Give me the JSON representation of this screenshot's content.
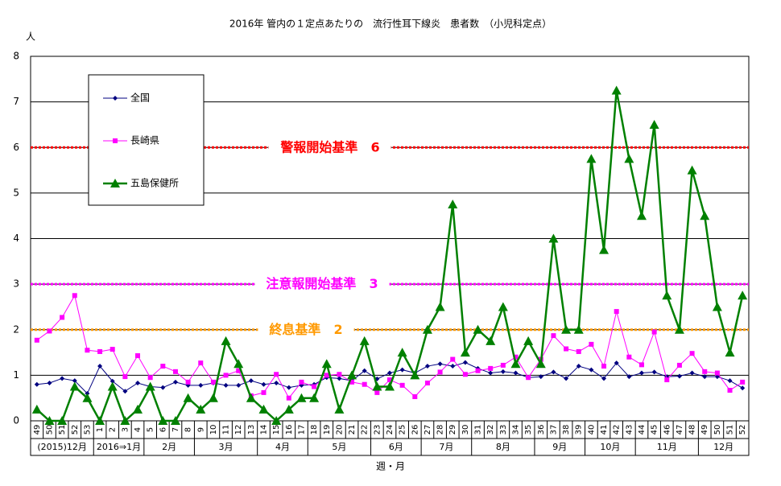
{
  "chart_data": {
    "type": "line",
    "title": "2016年 管内の１定点あたりの　流行性耳下線炎　患者数　（小児科定点）",
    "y_unit": "人",
    "x_label": "週・月",
    "categories": [
      "49",
      "50",
      "51",
      "52",
      "53",
      "1",
      "2",
      "3",
      "4",
      "5",
      "6",
      "7",
      "8",
      "9",
      "10",
      "11",
      "12",
      "13",
      "14",
      "15",
      "16",
      "17",
      "18",
      "19",
      "20",
      "21",
      "22",
      "23",
      "24",
      "25",
      "26",
      "27",
      "28",
      "29",
      "30",
      "31",
      "32",
      "33",
      "34",
      "35",
      "36",
      "37",
      "38",
      "39",
      "40",
      "41",
      "42",
      "43",
      "44",
      "45",
      "46",
      "47",
      "48",
      "49",
      "50",
      "51",
      "52"
    ],
    "x_group_labels": [
      "(2015)12月",
      null,
      null,
      null,
      null,
      "2016⇒1月",
      null,
      null,
      null,
      "2月",
      null,
      null,
      null,
      "3月",
      null,
      null,
      null,
      null,
      "4月",
      null,
      null,
      null,
      "5月",
      null,
      null,
      null,
      null,
      "6月",
      null,
      null,
      null,
      "7月",
      null,
      null,
      null,
      "8月",
      null,
      null,
      null,
      null,
      "9月",
      null,
      null,
      null,
      "10月",
      null,
      null,
      null,
      "11月",
      null,
      null,
      null,
      null,
      "12月",
      null,
      null,
      null
    ],
    "ylim": [
      0,
      8
    ],
    "yticks": [
      0,
      1,
      2,
      3,
      4,
      5,
      6,
      7,
      8
    ],
    "grid": true,
    "legend": "upper left",
    "series": [
      {
        "name": "全国",
        "color": "#000080",
        "marker": "diamond",
        "values": [
          0.8,
          0.83,
          0.93,
          0.88,
          0.6,
          1.2,
          0.87,
          0.65,
          0.83,
          0.75,
          0.73,
          0.85,
          0.78,
          0.78,
          0.83,
          0.78,
          0.78,
          0.88,
          0.8,
          0.83,
          0.73,
          0.78,
          0.8,
          0.95,
          0.93,
          0.88,
          1.1,
          0.92,
          1.05,
          1.12,
          1.05,
          1.2,
          1.25,
          1.2,
          1.28,
          1.15,
          1.05,
          1.08,
          1.05,
          0.95,
          0.97,
          1.07,
          0.93,
          1.2,
          1.12,
          0.93,
          1.27,
          0.97,
          1.05,
          1.07,
          0.97,
          0.98,
          1.05,
          0.97,
          0.97,
          0.88,
          0.72
        ]
      },
      {
        "name": "長崎県",
        "color": "#ff00ff",
        "marker": "square",
        "values": [
          1.77,
          1.97,
          2.27,
          2.75,
          1.55,
          1.52,
          1.57,
          0.97,
          1.43,
          0.95,
          1.2,
          1.08,
          0.85,
          1.27,
          0.85,
          1.0,
          1.1,
          0.55,
          0.62,
          1.02,
          0.5,
          0.85,
          0.75,
          1.0,
          1.02,
          0.85,
          0.8,
          0.62,
          0.9,
          0.78,
          0.53,
          0.83,
          1.07,
          1.35,
          1.02,
          1.1,
          1.15,
          1.22,
          1.4,
          0.95,
          1.35,
          1.87,
          1.58,
          1.52,
          1.68,
          1.2,
          2.4,
          1.4,
          1.23,
          1.95,
          0.9,
          1.22,
          1.48,
          1.08,
          1.05,
          0.67,
          0.85
        ]
      },
      {
        "name": "五島保健所",
        "color": "#008000",
        "marker": "triangle",
        "values": [
          0.25,
          0,
          0,
          0.75,
          0.5,
          0,
          0.75,
          0,
          0.25,
          0.75,
          0,
          0,
          0.5,
          0.25,
          0.5,
          1.75,
          1.25,
          0.5,
          0.25,
          0,
          0.25,
          0.5,
          0.5,
          1.25,
          0.25,
          1.0,
          1.75,
          0.75,
          0.75,
          1.5,
          1.0,
          2.0,
          2.5,
          4.75,
          1.5,
          2.0,
          1.75,
          2.5,
          1.25,
          1.75,
          1.25,
          4.0,
          2.0,
          2.0,
          5.75,
          3.75,
          7.25,
          5.75,
          4.5,
          6.5,
          2.75,
          2.0,
          5.5,
          4.5,
          2.5,
          1.5,
          2.75
        ]
      }
    ],
    "reference_lines": [
      {
        "label": "警報開始基準",
        "value": 6,
        "color": "#ff0000"
      },
      {
        "label": "注意報開始基準",
        "value": 3,
        "color": "#ff00ff"
      },
      {
        "label": "終息基準",
        "value": 2,
        "color": "#ff9900"
      }
    ]
  }
}
